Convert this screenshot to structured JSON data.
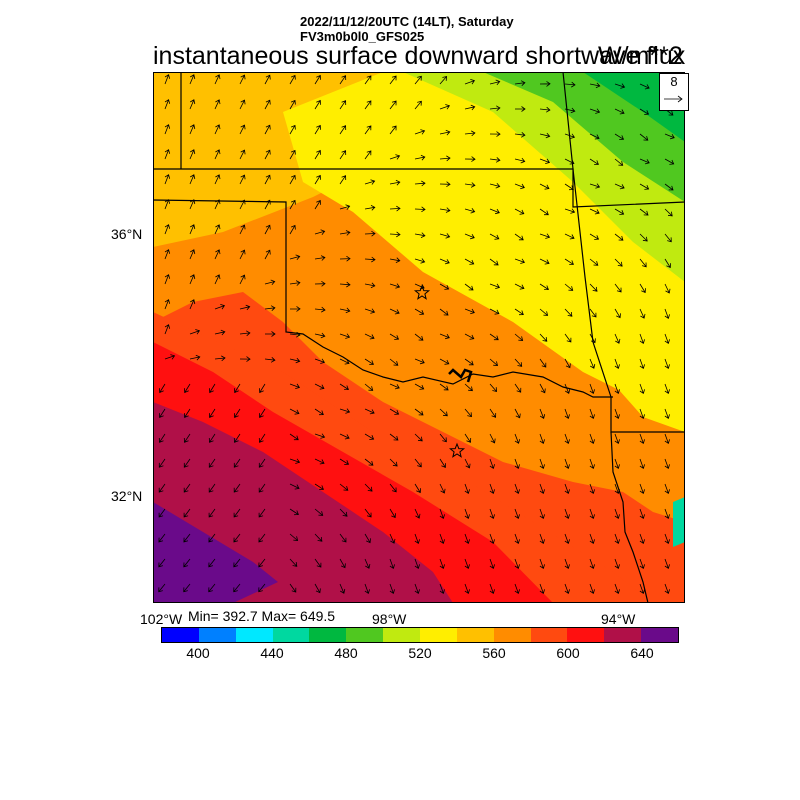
{
  "header": {
    "line1": "2022/11/12/20UTC (14LT), Saturday",
    "line2": "FV3m0b0l0_GFS025"
  },
  "title": "instantaneous surface downward shortwave flux",
  "units": "W/m**2",
  "vector_reference": {
    "value": "8"
  },
  "stats": {
    "text": "Min= 392.7 Max= 649.5",
    "min": 392.7,
    "max": 649.5
  },
  "axes": {
    "lat_labels": [
      "36°N",
      "32°N"
    ],
    "lon_labels": [
      "102°W",
      "98°W",
      "94°W"
    ]
  },
  "colorbar": {
    "colors": [
      "#0000ff",
      "#0080ff",
      "#00e8ff",
      "#00d8a0",
      "#00b840",
      "#50c820",
      "#c0ea10",
      "#ffee00",
      "#ffc000",
      "#ff8c00",
      "#ff4a10",
      "#ff1010",
      "#b01048",
      "#6a0a8a"
    ],
    "tick_labels": [
      "400",
      "440",
      "480",
      "520",
      "560",
      "600",
      "640"
    ]
  },
  "map": {
    "markers": [
      "star",
      "star"
    ],
    "vector_field": "surface wind arrows",
    "state_borders": "state boundaries"
  }
}
